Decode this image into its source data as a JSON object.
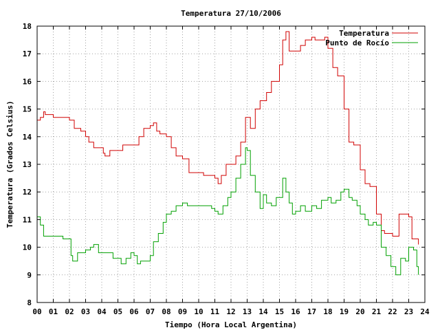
{
  "chart_data": {
    "type": "line",
    "title": "Temperatura 27/10/2006",
    "xlabel": "Tiempo (Hora Local Argentina)",
    "ylabel": "Temperatura (Grados Celsius)",
    "xlim": [
      0,
      24
    ],
    "ylim": [
      8,
      18
    ],
    "x_ticks": [
      "00",
      "01",
      "02",
      "03",
      "04",
      "05",
      "06",
      "07",
      "08",
      "09",
      "10",
      "11",
      "12",
      "13",
      "14",
      "15",
      "16",
      "17",
      "18",
      "19",
      "20",
      "21",
      "22",
      "23",
      "24"
    ],
    "y_ticks": [
      "8",
      "9",
      "10",
      "11",
      "12",
      "13",
      "14",
      "15",
      "16",
      "17",
      "18"
    ],
    "grid": true,
    "legend_position": "top-right",
    "series": [
      {
        "name": "Temperatura",
        "color": "#d00000",
        "x": [
          0.0,
          0.2,
          0.4,
          0.5,
          0.6,
          1.0,
          1.3,
          2.0,
          2.3,
          2.7,
          3.0,
          3.2,
          3.5,
          3.8,
          4.1,
          4.2,
          4.5,
          5.0,
          5.3,
          6.0,
          6.3,
          6.6,
          7.0,
          7.2,
          7.4,
          7.6,
          8.0,
          8.3,
          8.6,
          9.0,
          9.4,
          10.0,
          10.3,
          10.8,
          11.0,
          11.2,
          11.4,
          11.7,
          12.0,
          12.3,
          12.6,
          12.9,
          13.0,
          13.2,
          13.5,
          13.8,
          14.2,
          14.5,
          15.0,
          15.2,
          15.4,
          15.6,
          16.0,
          16.3,
          16.6,
          17.0,
          17.2,
          17.4,
          17.6,
          17.8,
          18.0,
          18.3,
          18.6,
          19.0,
          19.3,
          19.6,
          20.0,
          20.3,
          20.6,
          21.0,
          21.3,
          21.5,
          21.8,
          22.0,
          22.2,
          22.4,
          22.6,
          23.0,
          23.2,
          23.4,
          23.6
        ],
        "values": [
          14.6,
          14.7,
          14.9,
          14.8,
          14.8,
          14.7,
          14.7,
          14.6,
          14.3,
          14.2,
          14.0,
          13.8,
          13.6,
          13.6,
          13.4,
          13.3,
          13.5,
          13.5,
          13.7,
          13.7,
          14.0,
          14.3,
          14.4,
          14.5,
          14.2,
          14.1,
          14.0,
          13.6,
          13.3,
          13.2,
          12.7,
          12.7,
          12.6,
          12.6,
          12.5,
          12.3,
          12.6,
          13.0,
          13.0,
          13.3,
          13.8,
          14.7,
          14.7,
          14.3,
          15.0,
          15.3,
          15.6,
          16.0,
          16.6,
          17.5,
          17.8,
          17.1,
          17.1,
          17.3,
          17.5,
          17.6,
          17.5,
          17.5,
          17.5,
          17.6,
          17.2,
          16.5,
          16.2,
          15.0,
          13.8,
          13.7,
          12.8,
          12.3,
          12.2,
          11.2,
          10.6,
          10.5,
          10.5,
          10.4,
          10.4,
          11.2,
          11.2,
          11.1,
          10.3,
          10.3,
          10.1
        ]
      },
      {
        "name": "Punto de Rocío",
        "color": "#00a000",
        "x": [
          0.0,
          0.2,
          0.4,
          0.6,
          1.0,
          1.3,
          1.6,
          2.0,
          2.1,
          2.2,
          2.5,
          3.0,
          3.3,
          3.5,
          3.8,
          4.0,
          4.3,
          4.7,
          5.0,
          5.2,
          5.5,
          5.8,
          6.0,
          6.2,
          6.4,
          6.6,
          7.0,
          7.2,
          7.5,
          7.8,
          8.0,
          8.3,
          8.6,
          9.0,
          9.3,
          9.6,
          10.0,
          10.4,
          10.8,
          11.0,
          11.2,
          11.5,
          11.8,
          12.0,
          12.3,
          12.6,
          12.9,
          13.0,
          13.2,
          13.5,
          13.8,
          14.0,
          14.2,
          14.5,
          14.8,
          15.0,
          15.2,
          15.4,
          15.6,
          15.8,
          16.0,
          16.3,
          16.6,
          17.0,
          17.3,
          17.6,
          18.0,
          18.2,
          18.5,
          18.8,
          19.0,
          19.3,
          19.5,
          19.8,
          20.0,
          20.3,
          20.5,
          20.8,
          21.0,
          21.3,
          21.6,
          21.9,
          22.2,
          22.5,
          22.8,
          23.0,
          23.3,
          23.5,
          23.6
        ],
        "values": [
          11.1,
          10.8,
          10.4,
          10.4,
          10.4,
          10.4,
          10.3,
          10.3,
          9.7,
          9.5,
          9.8,
          9.9,
          10.0,
          10.1,
          9.8,
          9.8,
          9.8,
          9.6,
          9.6,
          9.4,
          9.6,
          9.8,
          9.7,
          9.4,
          9.5,
          9.5,
          9.7,
          10.2,
          10.5,
          10.9,
          11.2,
          11.3,
          11.5,
          11.6,
          11.5,
          11.5,
          11.5,
          11.5,
          11.4,
          11.3,
          11.2,
          11.5,
          11.8,
          12.0,
          12.5,
          13.0,
          13.6,
          13.5,
          12.6,
          12.0,
          11.4,
          11.9,
          11.6,
          11.5,
          11.8,
          11.8,
          12.5,
          12.0,
          11.6,
          11.2,
          11.3,
          11.5,
          11.3,
          11.5,
          11.4,
          11.7,
          11.8,
          11.6,
          11.7,
          12.0,
          12.1,
          11.8,
          11.7,
          11.5,
          11.2,
          11.0,
          10.8,
          10.9,
          10.8,
          10.0,
          9.7,
          9.3,
          9.0,
          9.6,
          9.5,
          10.0,
          9.9,
          9.3,
          9.0
        ]
      }
    ]
  }
}
